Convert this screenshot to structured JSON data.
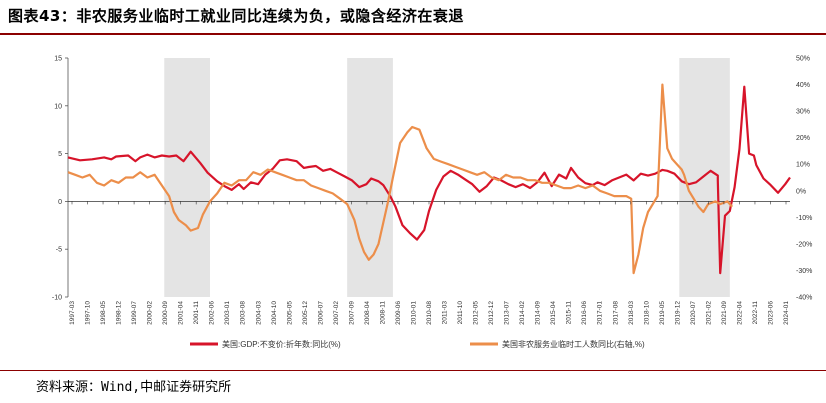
{
  "header": {
    "title": "图表43：非农服务业临时工就业同比连续为负，或隐含经济在衰退"
  },
  "footer": {
    "source": "资料来源：Wind,中邮证券研究所"
  },
  "colors": {
    "series_gdp": "#d7142a",
    "series_temp": "#ec8e4a",
    "shade": "#e4e4e4",
    "rule": "#8b0000"
  },
  "chart_data": {
    "type": "line",
    "left_axis": {
      "min": -10,
      "max": 15,
      "ticks": [
        -10,
        -5,
        0,
        5,
        10,
        15
      ]
    },
    "right_axis": {
      "min": -40,
      "max": 50,
      "ticks": [
        "-40%",
        "-30%",
        "-20%",
        "-10%",
        "0%",
        "10%",
        "20%",
        "30%",
        "40%",
        "50%"
      ]
    },
    "x_labels": [
      "1997-03",
      "1997-10",
      "1998-05",
      "1998-12",
      "1999-07",
      "2000-02",
      "2000-09",
      "2001-04",
      "2001-11",
      "2002-06",
      "2003-01",
      "2003-08",
      "2004-03",
      "2004-10",
      "2005-05",
      "2005-12",
      "2006-07",
      "2007-02",
      "2007-09",
      "2008-04",
      "2008-11",
      "2009-06",
      "2010-01",
      "2010-08",
      "2011-03",
      "2011-10",
      "2012-05",
      "2012-12",
      "2013-07",
      "2014-02",
      "2014-09",
      "2015-04",
      "2015-11",
      "2016-06",
      "2017-01",
      "2017-08",
      "2018-03",
      "2018-10",
      "2019-05",
      "2019-12",
      "2020-07",
      "2021-02",
      "2021-09",
      "2022-04",
      "2022-11",
      "2023-06",
      "2024-01"
    ],
    "shaded_periods": [
      {
        "from": 2001.0,
        "to": 2002.9
      },
      {
        "from": 2008.6,
        "to": 2010.5
      },
      {
        "from": 2022.4,
        "to": 2024.5
      }
    ],
    "series": [
      {
        "name": "美国:GDP:不变价:折年数:同比(%)",
        "axis": "left",
        "points": [
          [
            1997.0,
            4.6
          ],
          [
            1997.5,
            4.3
          ],
          [
            1998.0,
            4.4
          ],
          [
            1998.5,
            4.6
          ],
          [
            1998.8,
            4.4
          ],
          [
            1999.0,
            4.7
          ],
          [
            1999.5,
            4.8
          ],
          [
            1999.8,
            4.2
          ],
          [
            2000.0,
            4.6
          ],
          [
            2000.3,
            4.9
          ],
          [
            2000.6,
            4.6
          ],
          [
            2000.9,
            4.8
          ],
          [
            2001.2,
            4.7
          ],
          [
            2001.5,
            4.8
          ],
          [
            2001.8,
            4.2
          ],
          [
            2002.1,
            5.2
          ],
          [
            2002.5,
            4.0
          ],
          [
            2002.8,
            3.0
          ],
          [
            2003.2,
            2.1
          ],
          [
            2003.5,
            1.6
          ],
          [
            2003.8,
            1.2
          ],
          [
            2004.1,
            1.8
          ],
          [
            2004.3,
            1.3
          ],
          [
            2004.6,
            2.0
          ],
          [
            2004.9,
            1.8
          ],
          [
            2005.2,
            2.8
          ],
          [
            2005.5,
            3.4
          ],
          [
            2005.8,
            4.3
          ],
          [
            2006.1,
            4.4
          ],
          [
            2006.5,
            4.2
          ],
          [
            2006.8,
            3.5
          ],
          [
            2007.0,
            3.6
          ],
          [
            2007.3,
            3.7
          ],
          [
            2007.6,
            3.2
          ],
          [
            2007.9,
            3.4
          ],
          [
            2008.2,
            3.0
          ],
          [
            2008.5,
            2.6
          ],
          [
            2008.8,
            2.2
          ],
          [
            2009.1,
            1.5
          ],
          [
            2009.4,
            1.8
          ],
          [
            2009.6,
            2.4
          ],
          [
            2009.9,
            2.1
          ],
          [
            2010.1,
            1.7
          ],
          [
            2010.4,
            0.5
          ],
          [
            2010.6,
            -0.5
          ],
          [
            2010.9,
            -2.5
          ],
          [
            2011.2,
            -3.3
          ],
          [
            2011.5,
            -4.0
          ],
          [
            2011.8,
            -3.0
          ],
          [
            2012.0,
            -1.0
          ],
          [
            2012.3,
            1.2
          ],
          [
            2012.6,
            2.6
          ],
          [
            2012.9,
            3.2
          ],
          [
            2013.2,
            2.8
          ],
          [
            2013.5,
            2.3
          ],
          [
            2013.8,
            1.8
          ],
          [
            2014.1,
            1.0
          ],
          [
            2014.4,
            1.6
          ],
          [
            2014.7,
            2.5
          ],
          [
            2015.0,
            2.2
          ],
          [
            2015.3,
            1.8
          ],
          [
            2015.6,
            1.5
          ],
          [
            2015.9,
            1.8
          ],
          [
            2016.2,
            1.4
          ],
          [
            2016.5,
            2.0
          ],
          [
            2016.8,
            3.0
          ],
          [
            2017.1,
            1.6
          ],
          [
            2017.4,
            2.8
          ],
          [
            2017.7,
            2.4
          ],
          [
            2017.9,
            3.5
          ],
          [
            2018.2,
            2.5
          ],
          [
            2018.5,
            1.9
          ],
          [
            2018.8,
            1.7
          ],
          [
            2019.0,
            2.0
          ],
          [
            2019.3,
            1.7
          ],
          [
            2019.6,
            2.2
          ],
          [
            2019.9,
            2.5
          ],
          [
            2020.2,
            2.8
          ],
          [
            2020.5,
            2.2
          ],
          [
            2020.8,
            2.9
          ],
          [
            2021.1,
            2.7
          ],
          [
            2021.4,
            2.9
          ],
          [
            2021.7,
            3.3
          ],
          [
            2021.9,
            3.2
          ],
          [
            2022.2,
            2.9
          ],
          [
            2022.5,
            2.1
          ],
          [
            2022.8,
            1.8
          ],
          [
            2023.1,
            2.0
          ],
          [
            2023.4,
            2.6
          ],
          [
            2023.7,
            3.2
          ],
          [
            2024.0,
            2.7
          ],
          [
            2024.0,
            2.2
          ],
          [
            2024.1,
            -7.5
          ],
          [
            2024.3,
            -1.5
          ],
          [
            2024.5,
            -1.0
          ],
          [
            2024.7,
            1.5
          ],
          [
            2024.9,
            5.5
          ],
          [
            2025.1,
            12.0
          ],
          [
            2025.3,
            5.0
          ],
          [
            2025.5,
            4.8
          ],
          [
            2025.6,
            3.8
          ],
          [
            2025.9,
            2.4
          ],
          [
            2026.2,
            1.7
          ],
          [
            2026.5,
            0.9
          ],
          [
            2026.8,
            1.8
          ],
          [
            2027.0,
            2.5
          ]
        ]
      },
      {
        "name": "美国非农服务业临时工人数同比(右轴,%)",
        "axis": "right",
        "points": [
          [
            1997.0,
            7
          ],
          [
            1997.3,
            6
          ],
          [
            1997.6,
            5
          ],
          [
            1997.9,
            6
          ],
          [
            1998.2,
            3
          ],
          [
            1998.5,
            2
          ],
          [
            1998.8,
            4
          ],
          [
            1999.1,
            3
          ],
          [
            1999.4,
            5
          ],
          [
            1999.7,
            5
          ],
          [
            2000.0,
            7
          ],
          [
            2000.3,
            5
          ],
          [
            2000.6,
            6
          ],
          [
            2000.9,
            2
          ],
          [
            2001.2,
            -2
          ],
          [
            2001.4,
            -8
          ],
          [
            2001.6,
            -11
          ],
          [
            2001.9,
            -13
          ],
          [
            2002.1,
            -15
          ],
          [
            2002.4,
            -14
          ],
          [
            2002.6,
            -9
          ],
          [
            2002.9,
            -4
          ],
          [
            2003.2,
            -1
          ],
          [
            2003.5,
            3
          ],
          [
            2003.8,
            2
          ],
          [
            2004.1,
            4
          ],
          [
            2004.4,
            4
          ],
          [
            2004.7,
            7
          ],
          [
            2005.0,
            6
          ],
          [
            2005.3,
            8
          ],
          [
            2005.6,
            7
          ],
          [
            2005.9,
            6
          ],
          [
            2006.2,
            5
          ],
          [
            2006.5,
            4
          ],
          [
            2006.8,
            4
          ],
          [
            2007.1,
            2
          ],
          [
            2007.4,
            1
          ],
          [
            2007.7,
            0
          ],
          [
            2008.0,
            -1
          ],
          [
            2008.3,
            -3
          ],
          [
            2008.6,
            -5
          ],
          [
            2008.9,
            -11
          ],
          [
            2009.1,
            -18
          ],
          [
            2009.3,
            -23
          ],
          [
            2009.5,
            -26
          ],
          [
            2009.7,
            -24
          ],
          [
            2009.9,
            -20
          ],
          [
            2010.1,
            -12
          ],
          [
            2010.3,
            -4
          ],
          [
            2010.5,
            5
          ],
          [
            2010.8,
            18
          ],
          [
            2011.1,
            22
          ],
          [
            2011.3,
            24
          ],
          [
            2011.6,
            23
          ],
          [
            2011.9,
            16
          ],
          [
            2012.2,
            12
          ],
          [
            2012.5,
            11
          ],
          [
            2012.8,
            10
          ],
          [
            2013.1,
            9
          ],
          [
            2013.4,
            8
          ],
          [
            2013.7,
            7
          ],
          [
            2014.0,
            6
          ],
          [
            2014.3,
            7
          ],
          [
            2014.6,
            5
          ],
          [
            2014.9,
            4
          ],
          [
            2015.2,
            6
          ],
          [
            2015.5,
            5
          ],
          [
            2015.8,
            5
          ],
          [
            2016.1,
            4
          ],
          [
            2016.4,
            4
          ],
          [
            2016.7,
            3
          ],
          [
            2017.0,
            3
          ],
          [
            2017.3,
            2
          ],
          [
            2017.6,
            1
          ],
          [
            2017.9,
            1
          ],
          [
            2018.2,
            2
          ],
          [
            2018.5,
            1
          ],
          [
            2018.8,
            2
          ],
          [
            2019.1,
            0
          ],
          [
            2019.4,
            -1
          ],
          [
            2019.7,
            -2
          ],
          [
            2020.0,
            -2
          ],
          [
            2020.2,
            -2
          ],
          [
            2020.4,
            -3
          ],
          [
            2020.5,
            -31
          ],
          [
            2020.7,
            -24
          ],
          [
            2020.9,
            -14
          ],
          [
            2021.1,
            -8
          ],
          [
            2021.3,
            -5
          ],
          [
            2021.5,
            -2
          ],
          [
            2021.7,
            40
          ],
          [
            2021.9,
            16
          ],
          [
            2022.1,
            12
          ],
          [
            2022.3,
            10
          ],
          [
            2022.5,
            8
          ],
          [
            2022.6,
            6
          ],
          [
            2022.8,
            0
          ],
          [
            2023.0,
            -3
          ],
          [
            2023.2,
            -6
          ],
          [
            2023.4,
            -8
          ],
          [
            2023.6,
            -5
          ],
          [
            2023.9,
            -4
          ],
          [
            2024.1,
            -5
          ],
          [
            2024.4,
            -4
          ],
          [
            2024.6,
            -6
          ]
        ]
      }
    ]
  }
}
